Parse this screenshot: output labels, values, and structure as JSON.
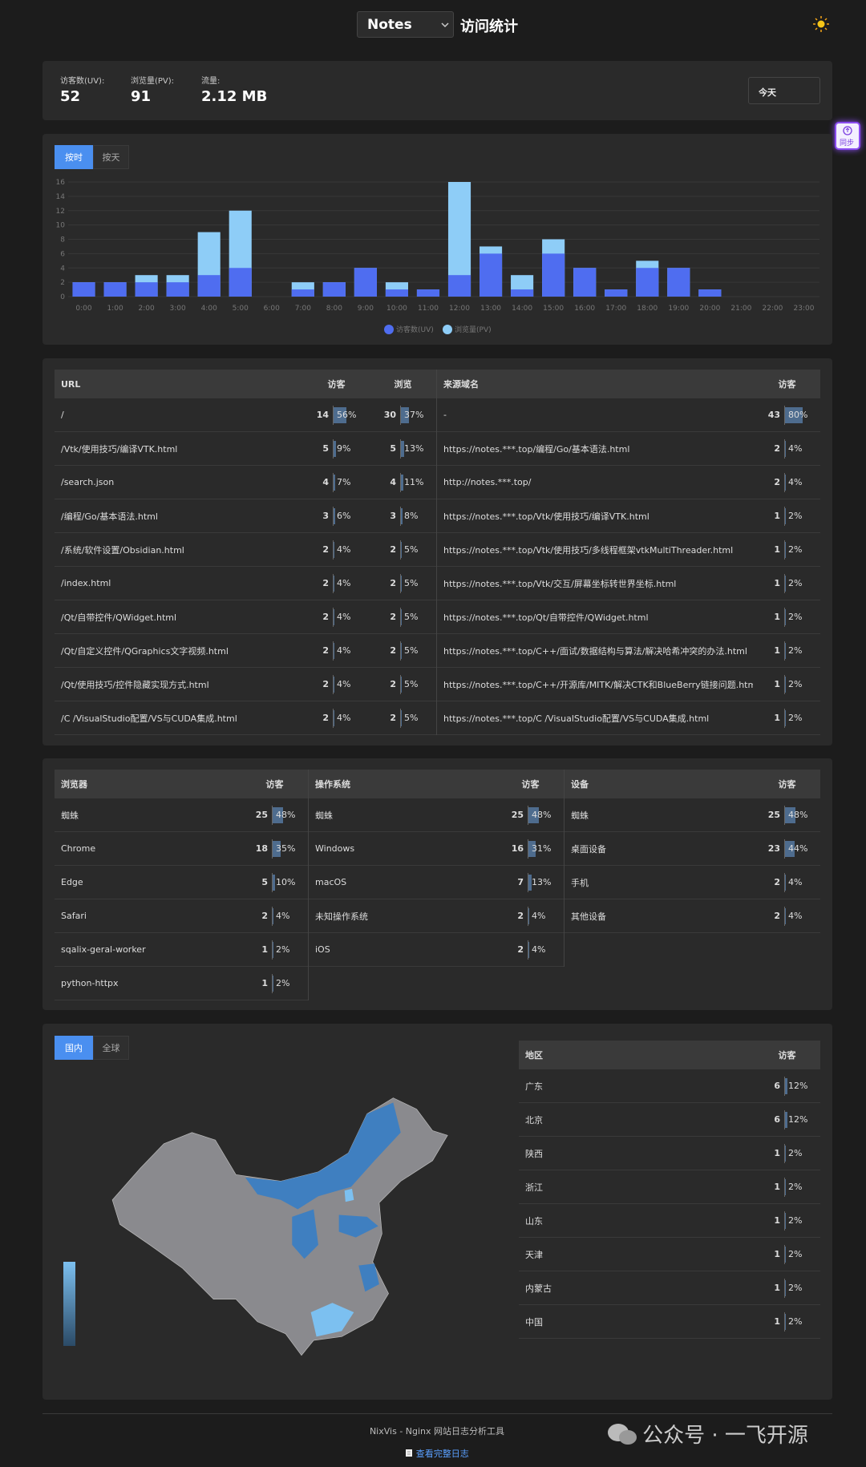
{
  "header": {
    "site": "Notes",
    "title": "访问统计"
  },
  "sync_button": "同步",
  "stats": [
    {
      "label": "访客数(UV):",
      "value": 52
    },
    {
      "label": "浏览量(PV):",
      "value": 91
    },
    {
      "label": "流量:",
      "value": "2.12 MB"
    }
  ],
  "date_range": "今天",
  "chart_tabs": [
    "按时",
    "按天"
  ],
  "chart_data": {
    "type": "bar",
    "categories": [
      "0:00",
      "1:00",
      "2:00",
      "3:00",
      "4:00",
      "5:00",
      "6:00",
      "7:00",
      "8:00",
      "9:00",
      "10:00",
      "11:00",
      "12:00",
      "13:00",
      "14:00",
      "15:00",
      "16:00",
      "17:00",
      "18:00",
      "19:00",
      "20:00",
      "21:00",
      "22:00",
      "23:00"
    ],
    "series": [
      {
        "name": "访客数(UV)",
        "color": "#4f6df0",
        "values": [
          2,
          2,
          2,
          2,
          3,
          4,
          0,
          1,
          2,
          4,
          1,
          1,
          3,
          6,
          1,
          6,
          4,
          1,
          4,
          4,
          1,
          0,
          0,
          0
        ]
      },
      {
        "name": "浏览量(PV)",
        "color": "#8ecdf7",
        "values": [
          2,
          2,
          3,
          3,
          9,
          12,
          0,
          2,
          2,
          4,
          2,
          1,
          16,
          7,
          3,
          8,
          4,
          1,
          5,
          4,
          1,
          0,
          0,
          0
        ]
      }
    ],
    "ylim": [
      0,
      16
    ],
    "yticks": [
      0,
      2,
      4,
      6,
      8,
      10,
      12,
      14,
      16
    ],
    "grid": true
  },
  "tables": {
    "pages": {
      "columns": [
        "URL",
        "访客",
        "浏览"
      ],
      "rows": [
        {
          "name": "/",
          "uv": 14,
          "uv_share": 56,
          "uv_share_label": "56%",
          "pv": 30,
          "pv_share": 37,
          "pv_share_label": "37%"
        },
        {
          "name": "/Vtk/使用技巧/编译VTK.html",
          "uv": 5,
          "uv_share": 9,
          "uv_share_label": "9%",
          "pv": 5,
          "pv_share": 13,
          "pv_share_label": "13%"
        },
        {
          "name": "/search.json",
          "uv": 4,
          "uv_share": 7,
          "uv_share_label": "7%",
          "pv": 4,
          "pv_share": 11,
          "pv_share_label": "11%"
        },
        {
          "name": "/编程/Go/基本语法.html",
          "uv": 3,
          "uv_share": 6,
          "uv_share_label": "6%",
          "pv": 3,
          "pv_share": 8,
          "pv_share_label": "8%"
        },
        {
          "name": "/系统/软件设置/Obsidian.html",
          "uv": 2,
          "uv_share": 4,
          "uv_share_label": "4%",
          "pv": 2,
          "pv_share": 5,
          "pv_share_label": "5%"
        },
        {
          "name": "/index.html",
          "uv": 2,
          "uv_share": 4,
          "uv_share_label": "4%",
          "pv": 2,
          "pv_share": 5,
          "pv_share_label": "5%"
        },
        {
          "name": "/Qt/自带控件/QWidget.html",
          "uv": 2,
          "uv_share": 4,
          "uv_share_label": "4%",
          "pv": 2,
          "pv_share": 5,
          "pv_share_label": "5%"
        },
        {
          "name": "/Qt/自定义控件/QGraphics文字视频.html",
          "uv": 2,
          "uv_share": 4,
          "uv_share_label": "4%",
          "pv": 2,
          "pv_share": 5,
          "pv_share_label": "5%"
        },
        {
          "name": "/Qt/使用技巧/控件隐藏实现方式.html",
          "uv": 2,
          "uv_share": 4,
          "uv_share_label": "4%",
          "pv": 2,
          "pv_share": 5,
          "pv_share_label": "5%"
        },
        {
          "name": "/C /VisualStudio配置/VS与CUDA集成.html",
          "uv": 2,
          "uv_share": 4,
          "uv_share_label": "4%",
          "pv": 2,
          "pv_share": 5,
          "pv_share_label": "5%"
        }
      ]
    },
    "referrers": {
      "columns": [
        "来源域名",
        "访客"
      ],
      "rows": [
        {
          "name": "-",
          "uv": 43,
          "uv_share": 80,
          "uv_share_label": "80%"
        },
        {
          "name": "https://notes.***.top/编程/Go/基本语法.html",
          "uv": 2,
          "uv_share": 4,
          "uv_share_label": "4%"
        },
        {
          "name": "http://notes.***.top/",
          "uv": 2,
          "uv_share": 4,
          "uv_share_label": "4%"
        },
        {
          "name": "https://notes.***.top/Vtk/使用技巧/编译VTK.html",
          "uv": 1,
          "uv_share": 2,
          "uv_share_label": "2%"
        },
        {
          "name": "https://notes.***.top/Vtk/使用技巧/多线程框架vtkMultiThreader.html",
          "uv": 1,
          "uv_share": 2,
          "uv_share_label": "2%"
        },
        {
          "name": "https://notes.***.top/Vtk/交互/屏幕坐标转世界坐标.html",
          "uv": 1,
          "uv_share": 2,
          "uv_share_label": "2%"
        },
        {
          "name": "https://notes.***.top/Qt/自带控件/QWidget.html",
          "uv": 1,
          "uv_share": 2,
          "uv_share_label": "2%"
        },
        {
          "name": "https://notes.***.top/C++/面试/数据结构与算法/解决哈希冲突的办法.html",
          "uv": 1,
          "uv_share": 2,
          "uv_share_label": "2%"
        },
        {
          "name": "https://notes.***.top/C++/开源库/MITK/解决CTK和BlueBerry链接问题.html",
          "uv": 1,
          "uv_share": 2,
          "uv_share_label": "2%"
        },
        {
          "name": "https://notes.***.top/C /VisualStudio配置/VS与CUDA集成.html",
          "uv": 1,
          "uv_share": 2,
          "uv_share_label": "2%"
        }
      ]
    },
    "browsers": {
      "columns": [
        "浏览器",
        "访客"
      ],
      "rows": [
        {
          "name": "蜘蛛",
          "uv": 25,
          "uv_share": 48,
          "uv_share_label": "48%"
        },
        {
          "name": "Chrome",
          "uv": 18,
          "uv_share": 35,
          "uv_share_label": "35%"
        },
        {
          "name": "Edge",
          "uv": 5,
          "uv_share": 10,
          "uv_share_label": "10%"
        },
        {
          "name": "Safari",
          "uv": 2,
          "uv_share": 4,
          "uv_share_label": "4%"
        },
        {
          "name": "sqalix-geral-worker",
          "uv": 1,
          "uv_share": 2,
          "uv_share_label": "2%"
        },
        {
          "name": "python-httpx",
          "uv": 1,
          "uv_share": 2,
          "uv_share_label": "2%"
        }
      ]
    },
    "os": {
      "columns": [
        "操作系统",
        "访客"
      ],
      "rows": [
        {
          "name": "蜘蛛",
          "uv": 25,
          "uv_share": 48,
          "uv_share_label": "48%"
        },
        {
          "name": "Windows",
          "uv": 16,
          "uv_share": 31,
          "uv_share_label": "31%"
        },
        {
          "name": "macOS",
          "uv": 7,
          "uv_share": 13,
          "uv_share_label": "13%"
        },
        {
          "name": "未知操作系统",
          "uv": 2,
          "uv_share": 4,
          "uv_share_label": "4%"
        },
        {
          "name": "iOS",
          "uv": 2,
          "uv_share": 4,
          "uv_share_label": "4%"
        }
      ]
    },
    "devices": {
      "columns": [
        "设备",
        "访客"
      ],
      "rows": [
        {
          "name": "蜘蛛",
          "uv": 25,
          "uv_share": 48,
          "uv_share_label": "48%"
        },
        {
          "name": "桌面设备",
          "uv": 23,
          "uv_share": 44,
          "uv_share_label": "44%"
        },
        {
          "name": "手机",
          "uv": 2,
          "uv_share": 4,
          "uv_share_label": "4%"
        },
        {
          "name": "其他设备",
          "uv": 2,
          "uv_share": 4,
          "uv_share_label": "4%"
        }
      ]
    },
    "regions": {
      "columns": [
        "地区",
        "访客"
      ],
      "rows": [
        {
          "name": "广东",
          "uv": 6,
          "uv_share": 12,
          "uv_share_label": "12%"
        },
        {
          "name": "北京",
          "uv": 6,
          "uv_share": 12,
          "uv_share_label": "12%"
        },
        {
          "name": "陕西",
          "uv": 1,
          "uv_share": 2,
          "uv_share_label": "2%"
        },
        {
          "name": "浙江",
          "uv": 1,
          "uv_share": 2,
          "uv_share_label": "2%"
        },
        {
          "name": "山东",
          "uv": 1,
          "uv_share": 2,
          "uv_share_label": "2%"
        },
        {
          "name": "天津",
          "uv": 1,
          "uv_share": 2,
          "uv_share_label": "2%"
        },
        {
          "name": "内蒙古",
          "uv": 1,
          "uv_share": 2,
          "uv_share_label": "2%"
        },
        {
          "name": "中国",
          "uv": 1,
          "uv_share": 2,
          "uv_share_label": "2%"
        }
      ]
    }
  },
  "map_tabs": [
    "国内",
    "全球"
  ],
  "footer": {
    "text": "NixVis - Nginx 网站日志分析工具",
    "link": "查看完整日志"
  },
  "watermark": "公众号 · 一飞开源"
}
